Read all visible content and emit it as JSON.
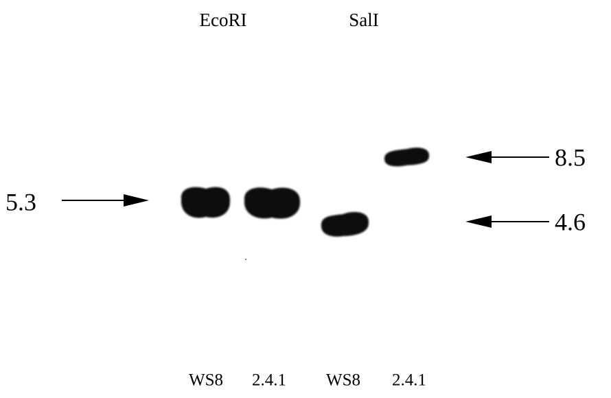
{
  "header": {
    "enzymes": [
      "EcoRI",
      "SalI"
    ]
  },
  "markers": {
    "left": [
      "5.3"
    ],
    "right": [
      "8.5",
      "4.6"
    ]
  },
  "lanes": [
    "WS8",
    "2.4.1",
    "WS8",
    "2.4.1"
  ]
}
